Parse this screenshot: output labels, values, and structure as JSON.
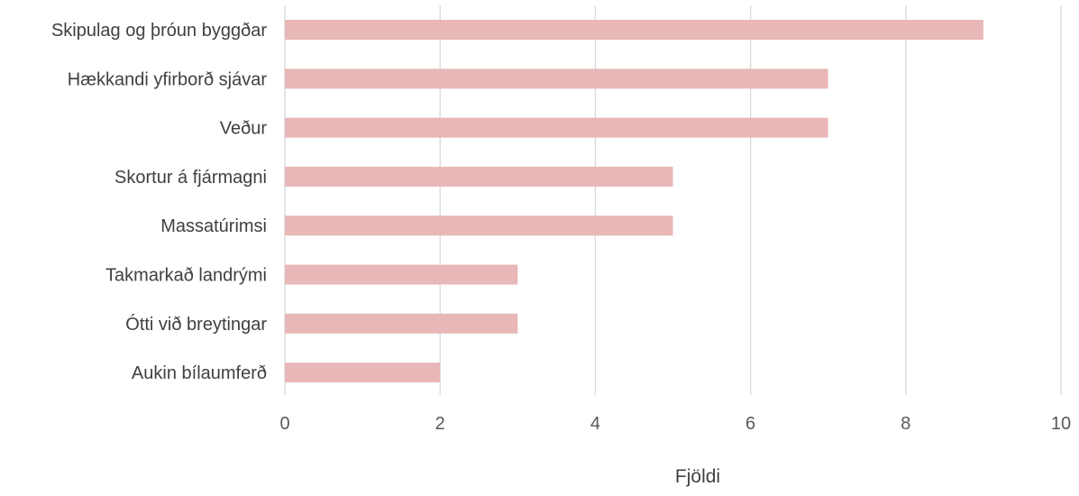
{
  "chart_data": {
    "type": "bar",
    "orientation": "horizontal",
    "categories": [
      "Skipulag og þróun byggðar",
      "Hækkandi yfirborð sjávar",
      "Veður",
      "Skortur á fjármagni",
      "Massatúrimsi",
      "Takmarkað landrými",
      "Ótti við breytingar",
      "Aukin bílaumferð"
    ],
    "values": [
      9,
      7,
      7,
      5,
      5,
      3,
      3,
      2
    ],
    "xlabel": "Fjöldi",
    "ylabel": "",
    "title": "",
    "xlim": [
      0,
      10
    ],
    "xticks": [
      "0",
      "2",
      "4",
      "6",
      "8",
      "10"
    ],
    "grid": "vertical",
    "legend": "none",
    "bar_color": "#e8b7b7",
    "gridline_color": "#d9d9d9"
  }
}
